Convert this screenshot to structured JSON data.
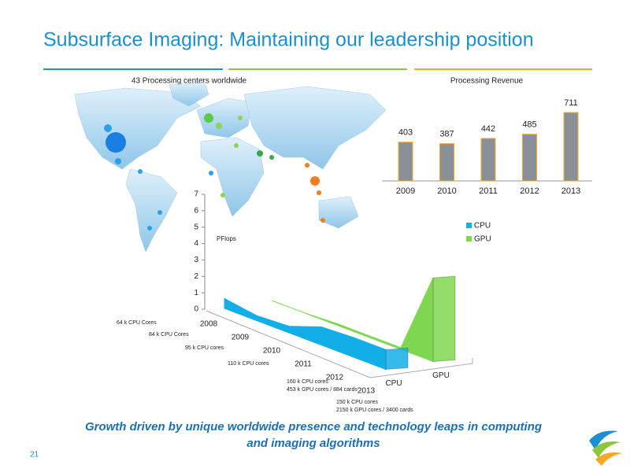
{
  "header": {
    "title": "Subsurface Imaging: Maintaining our leadership position"
  },
  "map": {
    "label": "43 Processing centers worldwide"
  },
  "chart_data": [
    {
      "type": "bar",
      "title": "Processing Revenue",
      "categories": [
        "2009",
        "2010",
        "2011",
        "2012",
        "2013"
      ],
      "values": [
        403,
        387,
        442,
        485,
        711
      ],
      "color": "#8a9097"
    },
    {
      "type": "area3d",
      "y_label": "PFlops",
      "categories": [
        "2008",
        "2009",
        "2010",
        "2011",
        "2012",
        "2013"
      ],
      "series": [
        {
          "name": "CPU",
          "color": "#12aee8",
          "values": [
            0.6,
            0.3,
            0.4,
            1.1,
            1.2,
            1.2
          ]
        },
        {
          "name": "GPU",
          "color": "#7fd650",
          "values": [
            0,
            0,
            0.1,
            0.1,
            0.1,
            5.1
          ]
        }
      ],
      "ylim": [
        0,
        7
      ],
      "yticks": [
        0,
        1,
        2,
        3,
        4,
        5,
        6,
        7
      ],
      "annotations": [
        "64 k CPU Cores",
        "84 k CPU Cores",
        "95 k CPU cores",
        "110 k CPU cores",
        "160 k CPU cores",
        "453 k GPU cores / 884 cards",
        "150  k CPU cores",
        "2150 k GPU cores / 3400 cards"
      ]
    }
  ],
  "footer": {
    "tagline": [
      "Growth driven by unique worldwide presence and technology leaps in computing",
      "and imaging algorithms"
    ],
    "page_number": "21"
  }
}
